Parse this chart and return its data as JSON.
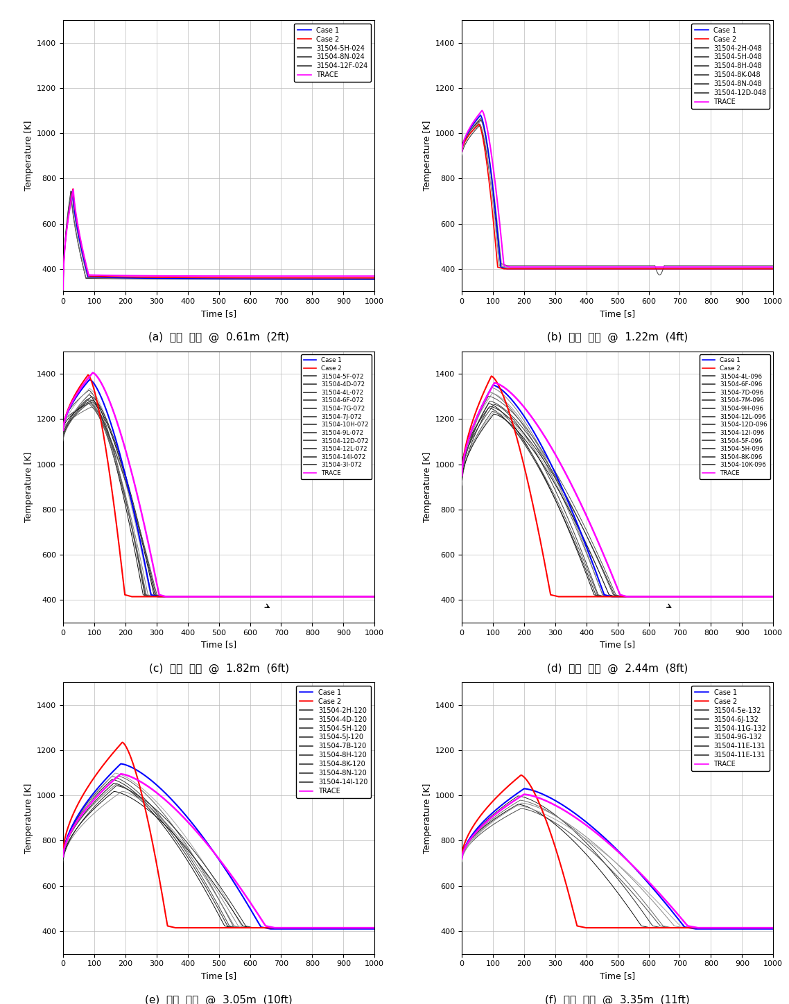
{
  "panels": [
    {
      "label": "(a)  벽면  온도  @  0.61m  (2ft)",
      "legend": [
        "Case 1",
        "Case 2",
        "31504-5H-024",
        "31504-8N-024",
        "31504-12F-024",
        "TRACE"
      ]
    },
    {
      "label": "(b)  벽면  온도  @  1.22m  (4ft)",
      "legend": [
        "Case 1",
        "Case 2",
        "31504-2H-048",
        "31504-5H-048",
        "31504-8H-048",
        "31504-8K-048",
        "31504-8N-048",
        "31504-12D-048",
        "TRACE"
      ]
    },
    {
      "label": "(c)  벽면  온도  @  1.82m  (6ft)",
      "legend": [
        "Case 1",
        "Case 2",
        "31504-5F-072",
        "31504-4D-072",
        "31504-4L-072",
        "31504-6F-072",
        "31504-7G-072",
        "31504-7J-072",
        "31504-10H-072",
        "31504-9L-072",
        "31504-12D-072",
        "31504-12L-072",
        "31504-14I-072",
        "31504-3I-072",
        "TRACE"
      ]
    },
    {
      "label": "(d)  벽면  온도  @  2.44m  (8ft)",
      "legend": [
        "Case 1",
        "Case 2",
        "31504-4L-096",
        "31504-6F-096",
        "31504-7D-096",
        "31504-7M-096",
        "31504-9H-096",
        "31504-12L-096",
        "31504-12D-096",
        "31504-12I-096",
        "31504-5F-096",
        "31504-5H-096",
        "31504-8K-096",
        "31504-10K-096",
        "TRACE"
      ]
    },
    {
      "label": "(e)  벽면  온도  @  3.05m  (10ft)",
      "legend": [
        "Case 1",
        "Case 2",
        "31504-2H-120",
        "31504-4D-120",
        "31504-5H-120",
        "31504-5J-120",
        "31504-7B-120",
        "31504-8H-120",
        "31504-8K-120",
        "31504-8N-120",
        "31504-14I-120",
        "TRACE"
      ]
    },
    {
      "label": "(f)  벽면  온도  @  3.35m  (11ft)",
      "legend": [
        "Case 1",
        "Case 2",
        "31504-5e-132",
        "31504-6J-132",
        "31504-11G-132",
        "31504-9G-132",
        "31504-11E-131",
        "31504-11E-131",
        "TRACE"
      ]
    }
  ],
  "ylim": [
    300,
    1500
  ],
  "yticks": [
    400,
    600,
    800,
    1000,
    1200,
    1400
  ],
  "xlim": [
    0,
    1000
  ],
  "xticks": [
    0,
    100,
    200,
    300,
    400,
    500,
    600,
    700,
    800,
    900,
    1000
  ],
  "xlabel": "Time [s]",
  "ylabel": "Temperature [K]",
  "color_case1": "#0000ff",
  "color_case2": "#ff0000",
  "color_trace": "#ff00ff",
  "color_exp": "#333333"
}
